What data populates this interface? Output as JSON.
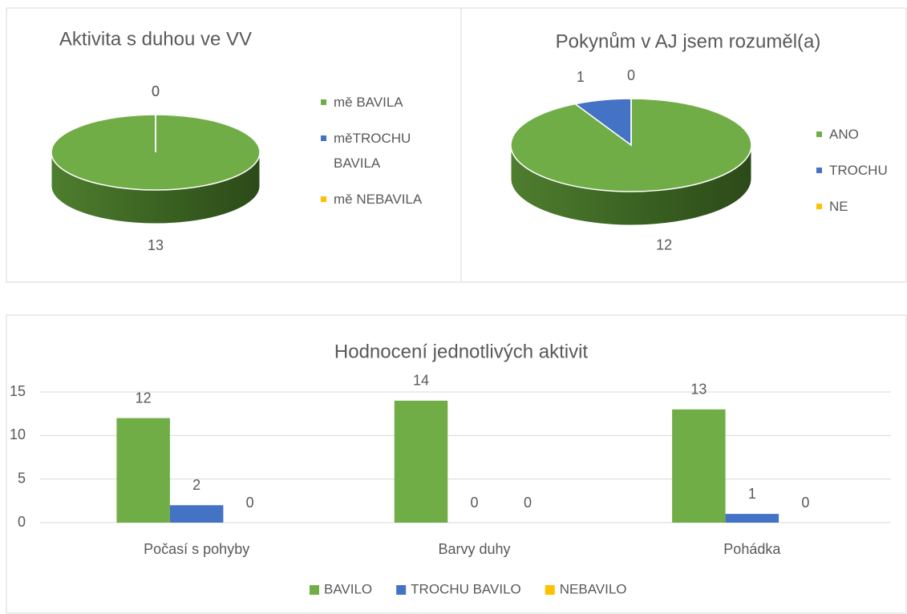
{
  "chart_data": [
    {
      "type": "pie3d",
      "title": "Aktivita s duhou ve VV",
      "categories": [
        "mě BAVILA",
        "měTROCHU BAVILA",
        "mě NEBAVILA"
      ],
      "values": [
        13,
        0,
        0
      ],
      "colors": [
        "#70ad47",
        "#4472c4",
        "#ffc000"
      ],
      "legend": "right"
    },
    {
      "type": "pie3d",
      "title": "Pokynům v AJ jsem rozuměl(a)",
      "categories": [
        "ANO",
        "TROCHU",
        "NE"
      ],
      "values": [
        12,
        1,
        0
      ],
      "colors": [
        "#70ad47",
        "#4472c4",
        "#ffc000"
      ],
      "legend": "right"
    },
    {
      "type": "bar",
      "title": "Hodnocení jednotlivých aktivit",
      "categories": [
        "Počasí s pohyby",
        "Barvy duhy",
        "Pohádka"
      ],
      "series": [
        {
          "name": "BAVILO",
          "color": "#70ad47",
          "values": [
            12,
            14,
            13
          ]
        },
        {
          "name": "TROCHU BAVILO",
          "color": "#4472c4",
          "values": [
            2,
            0,
            1
          ]
        },
        {
          "name": "NEBAVILO",
          "color": "#ffc000",
          "values": [
            0,
            0,
            0
          ]
        }
      ],
      "ylim": [
        0,
        15
      ],
      "yticks": [
        0,
        5,
        10,
        15
      ],
      "grid": true,
      "legend": "bottom"
    }
  ]
}
